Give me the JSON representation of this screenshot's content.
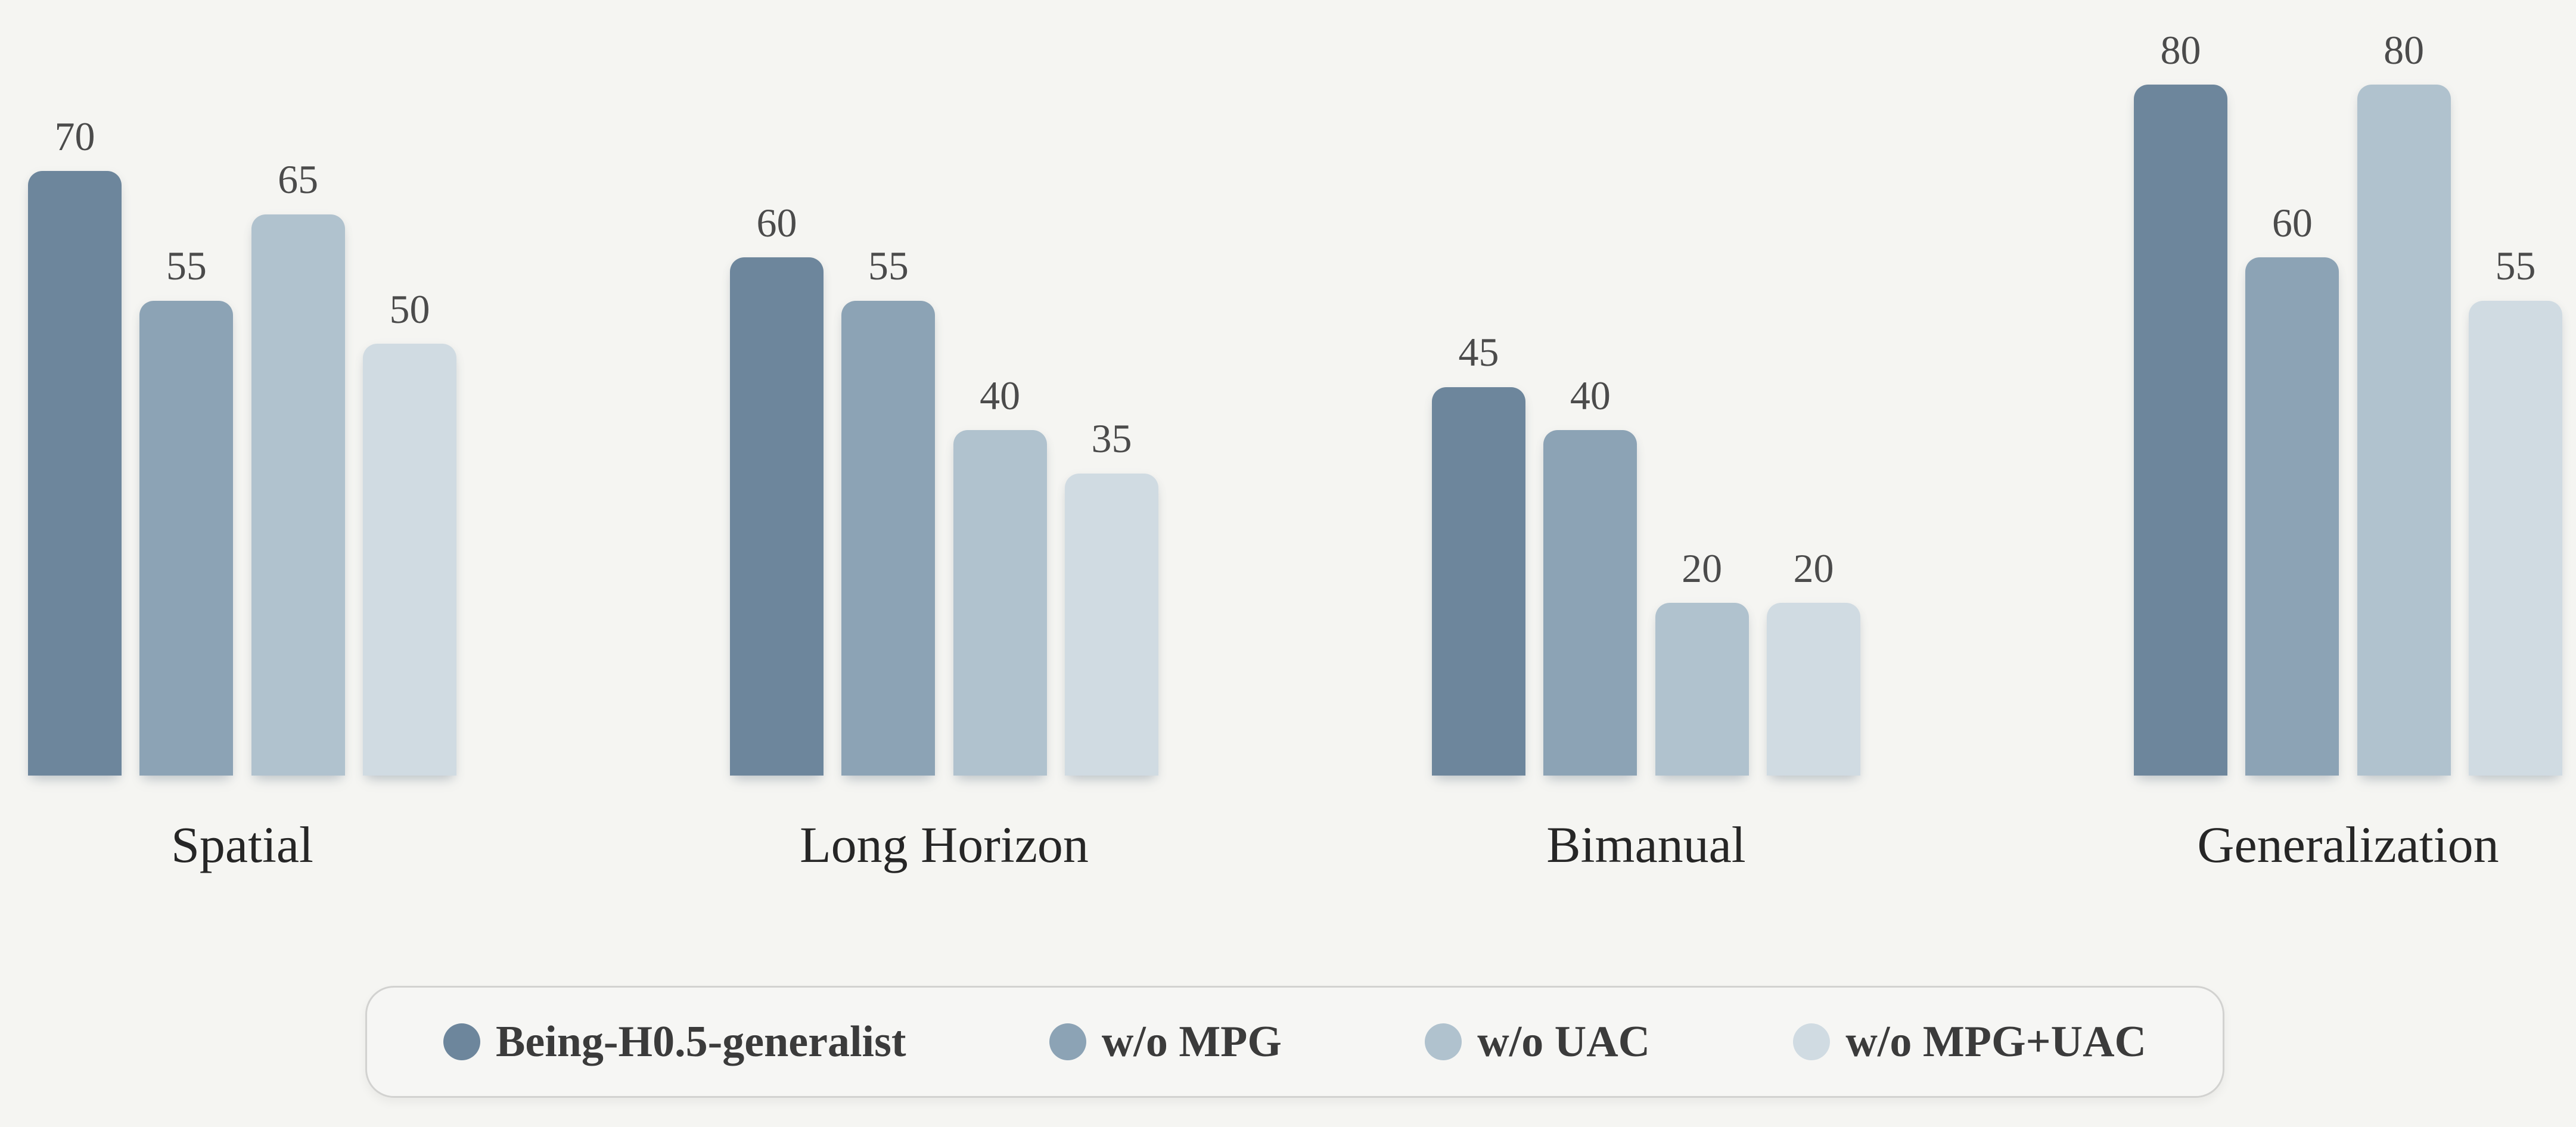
{
  "page": {
    "background_color": "#f5f5f2",
    "value_label_color": "#4b4b4b",
    "category_label_color": "#262626",
    "legend_text_color": "#3b3b3b",
    "legend_border_color": "#d2d2d0"
  },
  "chart_data": {
    "type": "bar",
    "title": "",
    "xlabel": "",
    "ylabel": "",
    "categories": [
      "Spatial",
      "Long Horizon",
      "Bimanual",
      "Generalization"
    ],
    "series": [
      {
        "name": "Being-H0.5-generalist",
        "color": "#6d869c",
        "values": [
          70,
          60,
          45,
          80
        ]
      },
      {
        "name": "w/o MPG",
        "color": "#8ca3b5",
        "values": [
          55,
          55,
          40,
          60
        ]
      },
      {
        "name": "w/o UAC",
        "color": "#b0c2ce",
        "values": [
          65,
          40,
          20,
          80
        ]
      },
      {
        "name": "w/o MPG+UAC",
        "color": "#d0dbe2",
        "values": [
          50,
          35,
          20,
          55
        ]
      }
    ],
    "value_labels_shown": true,
    "ylim": [
      0,
      90
    ],
    "grid": false,
    "axes_shown": false,
    "legend_position": "bottom"
  }
}
